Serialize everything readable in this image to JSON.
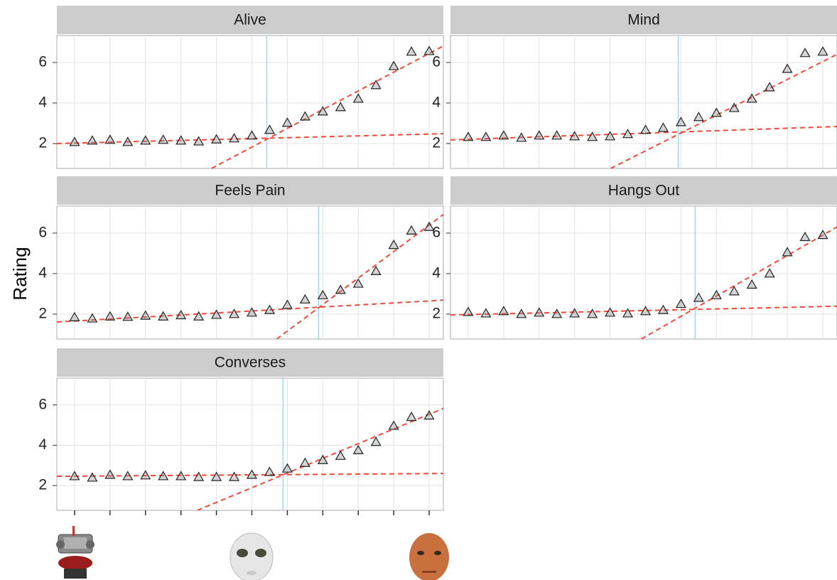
{
  "y_label": "Rating",
  "chart_data": [
    {
      "type": "scatter",
      "title": "Alive",
      "x": [
        0,
        1,
        2,
        3,
        4,
        5,
        6,
        7,
        8,
        9,
        10,
        11,
        12,
        13,
        14,
        15,
        16,
        17,
        18,
        19,
        20
      ],
      "values": [
        2.07,
        2.14,
        2.18,
        2.07,
        2.14,
        2.18,
        2.14,
        2.1,
        2.2,
        2.25,
        2.39,
        2.67,
        3.02,
        3.33,
        3.58,
        3.79,
        4.21,
        4.88,
        5.82,
        6.53,
        6.56
      ],
      "xlim": [
        -1,
        20.8
      ],
      "ylim": [
        0.77,
        7.33
      ],
      "yticks": [
        2,
        4,
        6
      ],
      "xticks": [
        0,
        2,
        4,
        6,
        8,
        10,
        12,
        14,
        16,
        18,
        20
      ],
      "grid": true,
      "color": "#888888",
      "fits": [
        {
          "x": [
            -1,
            21
          ],
          "y": [
            2.0,
            2.49
          ]
        },
        {
          "x": [
            7.72,
            21
          ],
          "y": [
            0.77,
            6.91
          ]
        }
      ],
      "fit_color": "#f04a3c",
      "breakpoint": 10.84,
      "breakpoint_color": "#a8d4e8"
    },
    {
      "type": "scatter",
      "title": "Mind",
      "x": [
        0,
        1,
        2,
        3,
        4,
        5,
        6,
        7,
        8,
        9,
        10,
        11,
        12,
        13,
        14,
        15,
        16,
        17,
        18,
        19,
        20
      ],
      "values": [
        2.32,
        2.32,
        2.39,
        2.28,
        2.39,
        2.39,
        2.35,
        2.32,
        2.35,
        2.46,
        2.67,
        2.77,
        3.05,
        3.3,
        3.51,
        3.75,
        4.21,
        4.77,
        5.68,
        6.46,
        6.53
      ],
      "xlim": [
        -1,
        20.8
      ],
      "ylim": [
        0.77,
        7.33
      ],
      "yticks": [
        2,
        4,
        6
      ],
      "xticks": [
        0,
        2,
        4,
        6,
        8,
        10,
        12,
        14,
        16,
        18,
        20
      ],
      "grid": true,
      "color": "#888888",
      "fits": [
        {
          "x": [
            -1,
            20.8
          ],
          "y": [
            2.18,
            2.84
          ]
        },
        {
          "x": [
            8.03,
            20.8
          ],
          "y": [
            0.77,
            6.4
          ]
        }
      ],
      "fit_color": "#f04a3c",
      "breakpoint": 11.85,
      "breakpoint_color": "#a8d4e8"
    },
    {
      "type": "scatter",
      "title": "Feels Pain",
      "x": [
        0,
        1,
        2,
        3,
        4,
        5,
        6,
        7,
        8,
        9,
        10,
        11,
        12,
        13,
        14,
        15,
        16,
        17,
        18,
        19,
        20
      ],
      "values": [
        1.84,
        1.78,
        1.88,
        1.86,
        1.92,
        1.88,
        1.94,
        1.88,
        1.96,
        2.0,
        2.07,
        2.2,
        2.45,
        2.72,
        2.93,
        3.19,
        3.5,
        4.12,
        5.41,
        6.12,
        6.3
      ],
      "xlim": [
        -1,
        20.8
      ],
      "ylim": [
        0.77,
        7.33
      ],
      "yticks": [
        2,
        4,
        6
      ],
      "xticks": [
        0,
        2,
        4,
        6,
        8,
        10,
        12,
        14,
        16,
        18,
        20
      ],
      "grid": true,
      "color": "#888888",
      "fits": [
        {
          "x": [
            -1,
            21
          ],
          "y": [
            1.61,
            2.7
          ]
        },
        {
          "x": [
            11.4,
            21
          ],
          "y": [
            0.77,
            7.05
          ]
        }
      ],
      "fit_color": "#f04a3c",
      "breakpoint": 13.76,
      "breakpoint_color": "#a8d4e8"
    },
    {
      "type": "scatter",
      "title": "Hangs Out",
      "x": [
        0,
        1,
        2,
        3,
        4,
        5,
        6,
        7,
        8,
        9,
        10,
        11,
        12,
        13,
        14,
        15,
        16,
        17,
        18,
        19,
        20
      ],
      "values": [
        2.1,
        2.03,
        2.14,
        2.0,
        2.07,
        2.0,
        2.03,
        2.0,
        2.07,
        2.03,
        2.14,
        2.2,
        2.5,
        2.8,
        2.93,
        3.12,
        3.45,
        4.0,
        5.05,
        5.8,
        5.9
      ],
      "xlim": [
        -1,
        20.8
      ],
      "ylim": [
        0.77,
        7.33
      ],
      "yticks": [
        2,
        4,
        6
      ],
      "xticks": [
        0,
        2,
        4,
        6,
        8,
        10,
        12,
        14,
        16,
        18,
        20
      ],
      "grid": true,
      "color": "#888888",
      "fits": [
        {
          "x": [
            -1,
            20.8
          ],
          "y": [
            1.96,
            2.39
          ]
        },
        {
          "x": [
            9.76,
            20.8
          ],
          "y": [
            0.77,
            6.3
          ]
        }
      ],
      "fit_color": "#f04a3c",
      "breakpoint": 12.8,
      "breakpoint_color": "#a8d4e8"
    },
    {
      "type": "scatter",
      "title": "Converses",
      "x": [
        0,
        1,
        2,
        3,
        4,
        5,
        6,
        7,
        8,
        9,
        10,
        11,
        12,
        13,
        14,
        15,
        16,
        17,
        18,
        19,
        20
      ],
      "values": [
        2.46,
        2.39,
        2.53,
        2.46,
        2.5,
        2.46,
        2.46,
        2.42,
        2.42,
        2.42,
        2.53,
        2.67,
        2.84,
        3.12,
        3.26,
        3.47,
        3.75,
        4.16,
        4.96,
        5.4,
        5.47
      ],
      "xlim": [
        -1,
        20.8
      ],
      "ylim": [
        0.77,
        7.33
      ],
      "yticks": [
        2,
        4,
        6
      ],
      "xticks": [
        0,
        2,
        4,
        6,
        8,
        10,
        12,
        14,
        16,
        18,
        20
      ],
      "grid": true,
      "color": "#888888",
      "fits": [
        {
          "x": [
            -1,
            21
          ],
          "y": [
            2.46,
            2.6
          ]
        },
        {
          "x": [
            6.92,
            21
          ],
          "y": [
            0.77,
            5.9
          ]
        }
      ],
      "fit_color": "#f04a3c",
      "breakpoint": 11.76,
      "breakpoint_color": "#a8d4e8"
    }
  ]
}
